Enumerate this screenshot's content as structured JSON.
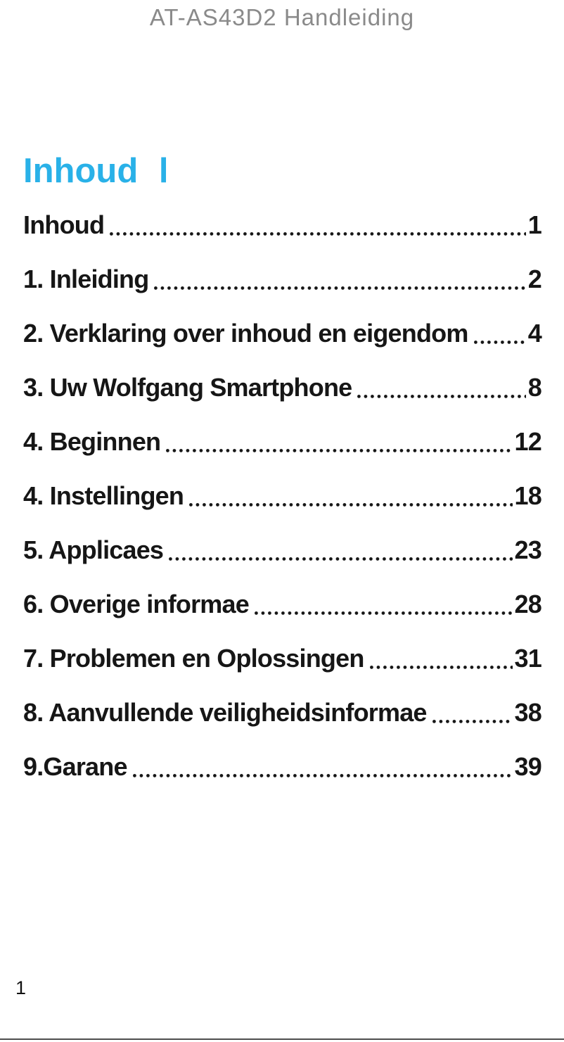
{
  "document": {
    "title": "AT-AS43D2 Handleiding",
    "footer_page_number": "1"
  },
  "toc": {
    "heading": "Inhoud l",
    "entries": [
      {
        "label": "Inhoud",
        "page": "1"
      },
      {
        "label": "1. Inleiding",
        "page": "2"
      },
      {
        "label": "2. Verklaring over inhoud en eigendom",
        "page": "4"
      },
      {
        "label": "3. Uw Wolfgang Smartphone",
        "page": "8"
      },
      {
        "label": "4. Beginnen",
        "page": "12"
      },
      {
        "label": "4. Instellingen",
        "page": "18"
      },
      {
        "label": "5. Applicaes",
        "page": "23"
      },
      {
        "label": "6. Overige informae",
        "page": "28"
      },
      {
        "label": "7. Problemen en Oplossingen",
        "page": "31"
      },
      {
        "label": "8. Aanvullende veiligheidsinformae",
        "page": "38"
      },
      {
        "label": "9.Garane",
        "page": "39"
      }
    ]
  },
  "colors": {
    "heading_accent": "#29B1E8",
    "title_gray": "#8A8A8A",
    "text": "#161616",
    "footer_rule": "#4D4D4D"
  }
}
